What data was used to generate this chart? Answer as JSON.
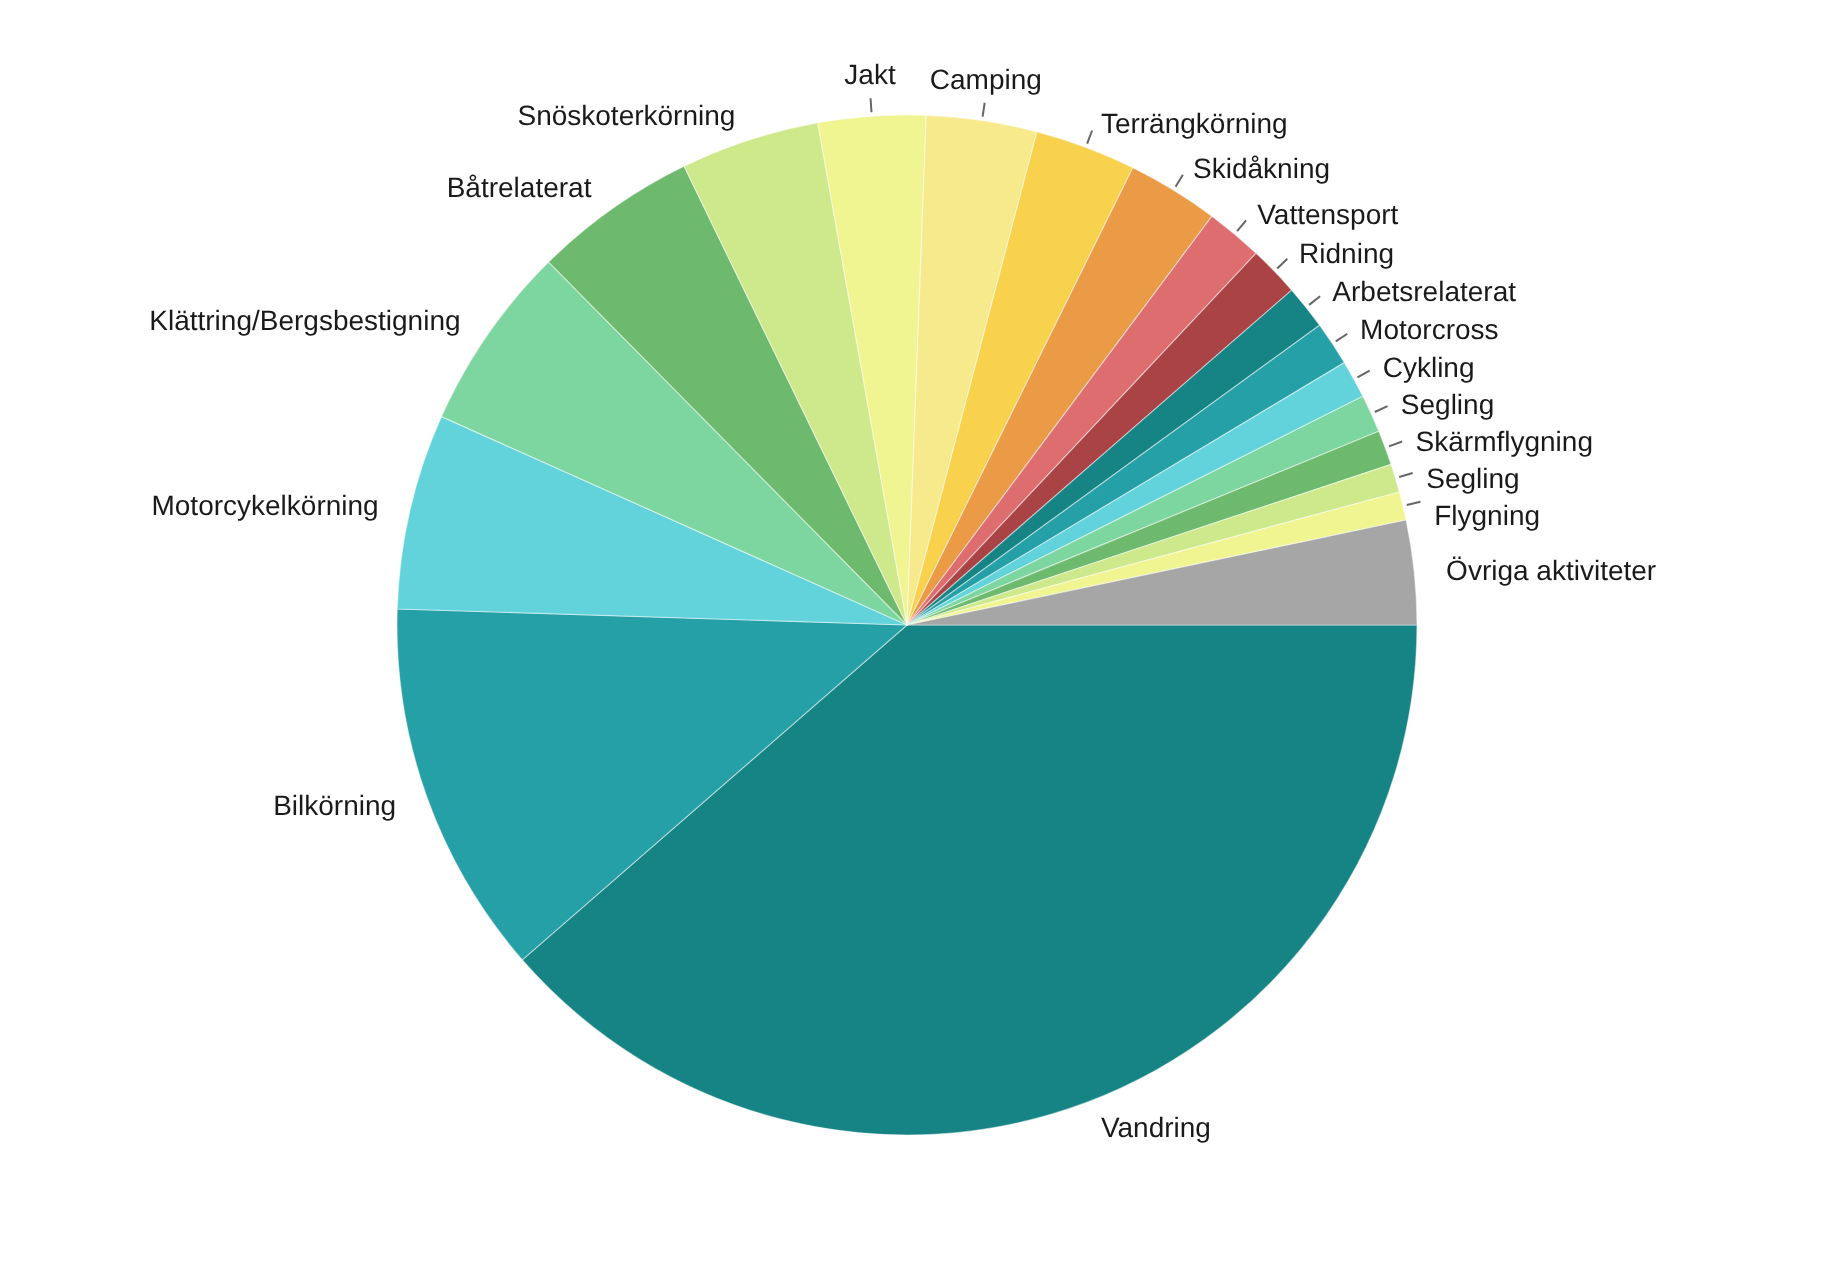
{
  "chart_data": {
    "type": "pie",
    "categories": [
      "Vandring",
      "Bilkörning",
      "Motorcykelkörning",
      "Klättring/Bergsbestigning",
      "Båtrelaterat",
      "Snöskoterkörning",
      "Jakt",
      "Camping",
      "Terrängkörning",
      "Skidåkning",
      "Vattensport",
      "Ridning",
      "Arbetsrelaterat",
      "Motorcross",
      "Cykling",
      "Segling",
      "Skärmflygning",
      "Segling",
      "Flygning",
      "Övriga aktiviteter"
    ],
    "values": [
      38.6,
      11.9,
      6.2,
      5.9,
      5.2,
      4.4,
      3.4,
      3.5,
      3.2,
      2.9,
      1.8,
      1.6,
      1.4,
      1.4,
      1.2,
      1.2,
      1.1,
      0.9,
      0.9,
      3.3
    ],
    "colors": [
      "#168384",
      "#25a0a6",
      "#62d3da",
      "#7dd6a0",
      "#6db96e",
      "#cde98b",
      "#f0f591",
      "#f7ea8c",
      "#f8d24c",
      "#eb9a45",
      "#de6d70",
      "#a94345",
      "#168384",
      "#25a0a6",
      "#62d3da",
      "#7dd6a0",
      "#6db96e",
      "#cde98b",
      "#f0f591",
      "#a6a6a6"
    ]
  }
}
